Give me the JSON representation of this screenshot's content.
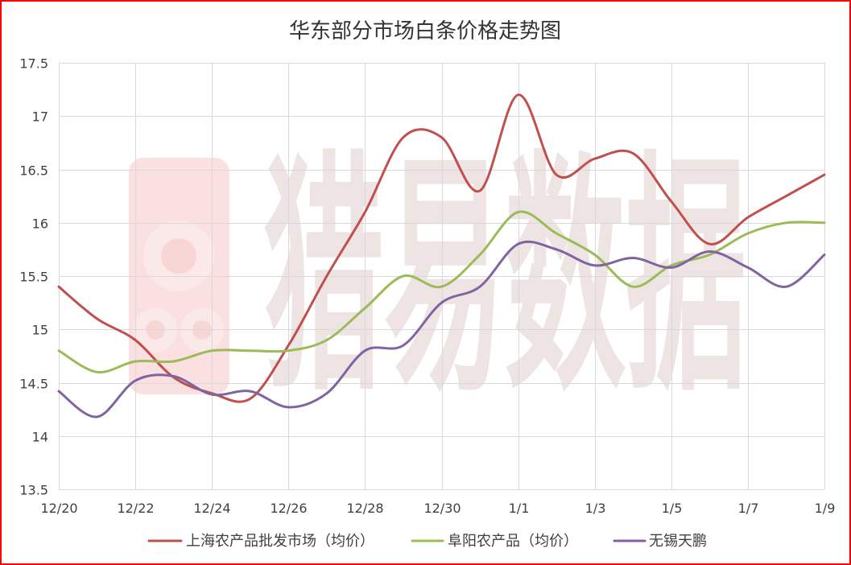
{
  "watermark": "猎易数据",
  "chart_data": {
    "type": "line",
    "title": "华东部分市场白条价格走势图",
    "xlabel": "",
    "ylabel": "",
    "x": [
      "12/20",
      "12/21",
      "12/22",
      "12/23",
      "12/24",
      "12/25",
      "12/26",
      "12/27",
      "12/28",
      "12/29",
      "12/30",
      "12/31",
      "1/1",
      "1/2",
      "1/3",
      "1/4",
      "1/5",
      "1/6",
      "1/7",
      "1/8",
      "1/9"
    ],
    "xticks": [
      "12/20",
      "12/22",
      "12/24",
      "12/26",
      "12/28",
      "12/30",
      "1/1",
      "1/3",
      "1/5",
      "1/7",
      "1/9"
    ],
    "yticks": [
      "13.5",
      "14",
      "14.5",
      "15",
      "15.5",
      "16",
      "16.5",
      "17",
      "17.5"
    ],
    "ylim": [
      13.5,
      17.5
    ],
    "grid": true,
    "smooth": true,
    "legend": "bottom",
    "series": [
      {
        "name": "上海农产品批发市场（均价）",
        "color": "#C0504D",
        "values": [
          15.4,
          15.1,
          14.9,
          14.55,
          14.4,
          14.35,
          14.85,
          15.5,
          16.1,
          16.8,
          16.8,
          16.3,
          17.2,
          16.45,
          16.6,
          16.65,
          16.2,
          15.8,
          16.05,
          16.25,
          16.45
        ]
      },
      {
        "name": "阜阳农产品（均价）",
        "color": "#9BBB59",
        "values": [
          14.8,
          14.6,
          14.7,
          14.7,
          14.8,
          14.8,
          14.8,
          14.9,
          15.2,
          15.5,
          15.4,
          15.7,
          16.1,
          15.9,
          15.7,
          15.4,
          15.6,
          15.7,
          15.9,
          16.0,
          16.0
        ]
      },
      {
        "name": "无锡天鹏",
        "color": "#8064A2",
        "values": [
          14.42,
          14.18,
          14.52,
          14.56,
          14.39,
          14.42,
          14.27,
          14.4,
          14.8,
          14.85,
          15.25,
          15.4,
          15.8,
          15.75,
          15.6,
          15.67,
          15.58,
          15.73,
          15.58,
          15.4,
          15.7
        ]
      }
    ]
  },
  "colors": {
    "frame": "#FF0000"
  }
}
